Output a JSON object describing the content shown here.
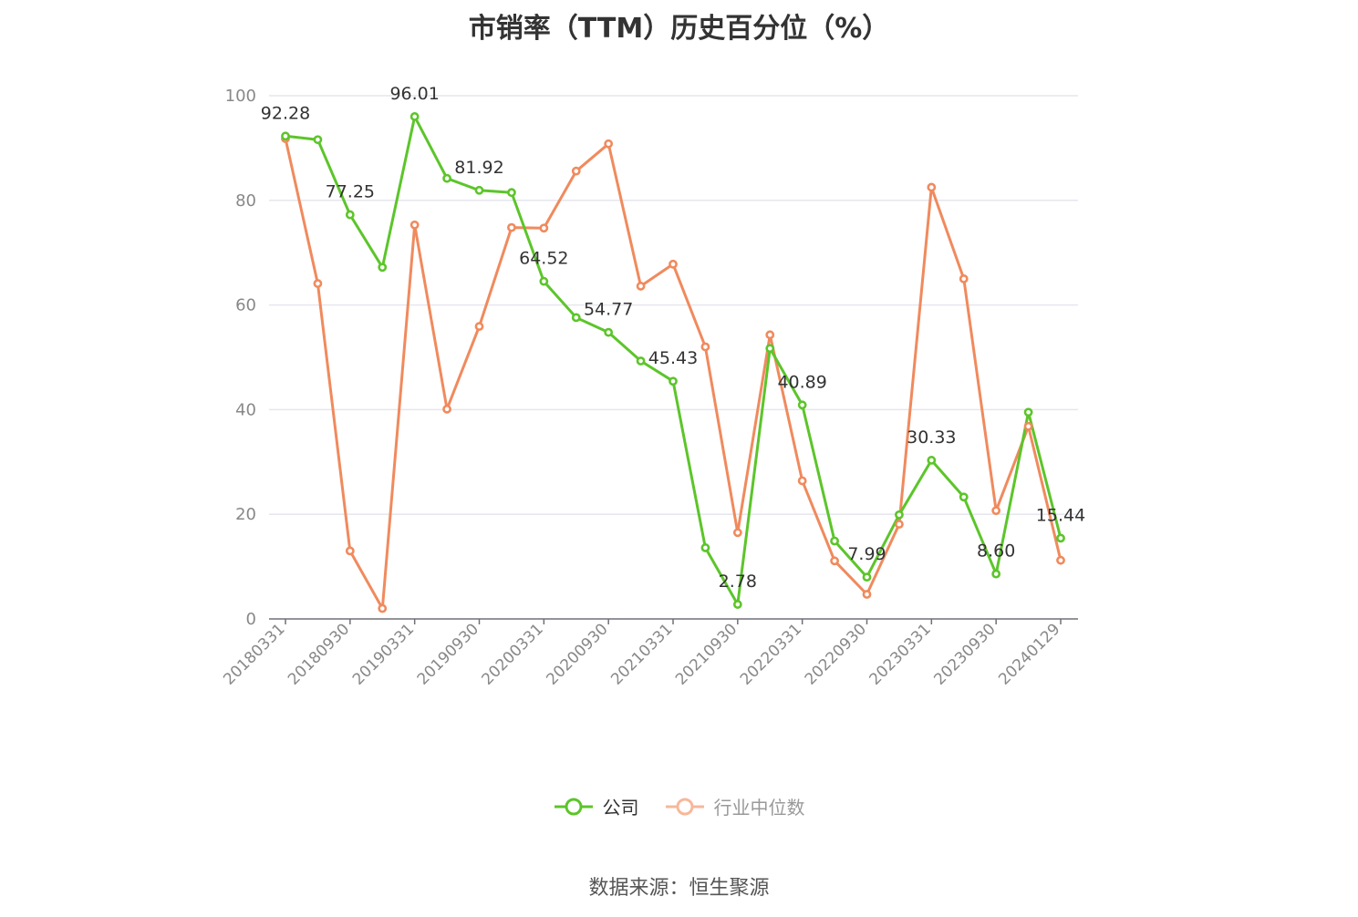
{
  "chart_data": {
    "type": "line",
    "title": "市销率（TTM）历史百分位（%）",
    "ylim": [
      0,
      100
    ],
    "y_ticks": [
      0,
      20,
      40,
      60,
      80,
      100
    ],
    "x_tick_labels": [
      "20180331",
      "20180930",
      "20190331",
      "20190930",
      "20200331",
      "20200930",
      "20210331",
      "20210930",
      "20220331",
      "20220930",
      "20230331",
      "20230930",
      "20240129"
    ],
    "x": [
      "20180331",
      "20180630",
      "20180930",
      "20181231",
      "20190331",
      "20190630",
      "20190930",
      "20191231",
      "20200331",
      "20200630",
      "20200930",
      "20201231",
      "20210331",
      "20210630",
      "20210930",
      "20211231",
      "20220331",
      "20220630",
      "20220930",
      "20221231",
      "20230331",
      "20230630",
      "20230930",
      "20231231",
      "20240129"
    ],
    "grid": true,
    "legend_position": "bottom",
    "series": [
      {
        "name": "公司",
        "color": "#5cc52a",
        "values": [
          92.28,
          91.6,
          77.25,
          67.2,
          96.01,
          84.2,
          81.92,
          81.5,
          64.52,
          57.6,
          54.77,
          49.3,
          45.43,
          13.6,
          2.78,
          51.7,
          40.89,
          14.9,
          7.99,
          19.9,
          30.33,
          23.3,
          8.6,
          39.5,
          15.44
        ],
        "labeled_indices": [
          0,
          2,
          4,
          6,
          8,
          10,
          12,
          14,
          16,
          18,
          20,
          22,
          24
        ]
      },
      {
        "name": "行业中位数",
        "color": "#f08a5d",
        "values": [
          91.8,
          64.1,
          13.0,
          2.0,
          75.3,
          40.1,
          55.9,
          74.8,
          74.7,
          85.6,
          90.8,
          63.6,
          67.8,
          52.0,
          16.5,
          54.3,
          26.4,
          11.1,
          4.7,
          18.1,
          82.5,
          65.0,
          20.7,
          36.8,
          11.2
        ]
      }
    ]
  },
  "legend": {
    "items": [
      {
        "label": "公司"
      },
      {
        "label": "行业中位数"
      }
    ]
  },
  "source": "数据来源：恒生聚源"
}
